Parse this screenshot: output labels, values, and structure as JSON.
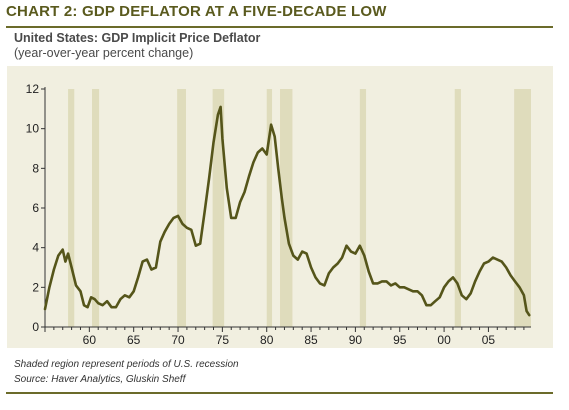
{
  "header": {
    "title": "CHART 2: GDP DEFLATOR AT A FIVE-DECADE LOW",
    "subtitle": "United States: GDP Implicit Price Deflator",
    "unit": "(year-over-year percent change)"
  },
  "footer": {
    "note": "Shaded region represent periods of U.S. recession",
    "source": "Source: Haver Analytics, Gluskin Sheff"
  },
  "colors": {
    "line": "#55551a",
    "recession": "#dfdcbc",
    "background": "#f1efe0",
    "title": "#5a5a1e"
  },
  "chart_data": {
    "type": "line",
    "title": "CHART 2: GDP DEFLATOR AT A FIVE-DECADE LOW",
    "subtitle": "United States: GDP Implicit Price Deflator",
    "ylabel": "(year-over-year percent change)",
    "xlim": [
      1955.0,
      2009.8
    ],
    "ylim": [
      0,
      12
    ],
    "yticks": [
      0,
      2,
      4,
      6,
      8,
      10,
      12
    ],
    "xticks": [
      {
        "label": "60",
        "value": 1960
      },
      {
        "label": "65",
        "value": 1965
      },
      {
        "label": "70",
        "value": 1970
      },
      {
        "label": "75",
        "value": 1975
      },
      {
        "label": "80",
        "value": 1980
      },
      {
        "label": "85",
        "value": 1985
      },
      {
        "label": "90",
        "value": 1990
      },
      {
        "label": "95",
        "value": 1995
      },
      {
        "label": "00",
        "value": 2000
      },
      {
        "label": "05",
        "value": 2005
      }
    ],
    "grid": false,
    "recessions": [
      [
        1957.6,
        1958.3
      ],
      [
        1960.3,
        1961.1
      ],
      [
        1969.9,
        1970.9
      ],
      [
        1973.9,
        1975.2
      ],
      [
        1980.0,
        1980.6
      ],
      [
        1981.5,
        1982.9
      ],
      [
        1990.5,
        1991.2
      ],
      [
        2001.2,
        2001.9
      ],
      [
        2007.9,
        2009.8
      ]
    ],
    "series": [
      {
        "x": [
          1955.0,
          1955.5,
          1956.0,
          1956.5,
          1957.0,
          1957.3,
          1957.6,
          1958.0,
          1958.5,
          1959.0,
          1959.4,
          1959.8,
          1960.2,
          1960.6,
          1961.0,
          1961.5,
          1962.0,
          1962.5,
          1963.0,
          1963.5,
          1964.0,
          1964.5,
          1965.0,
          1965.5,
          1966.0,
          1966.5,
          1967.0,
          1967.5,
          1968.0,
          1968.5,
          1969.0,
          1969.5,
          1970.0,
          1970.5,
          1971.0,
          1971.5,
          1972.0,
          1972.5,
          1973.0,
          1973.5,
          1974.0,
          1974.5,
          1974.8,
          1975.0,
          1975.5,
          1976.0,
          1976.5,
          1977.0,
          1977.5,
          1978.0,
          1978.5,
          1979.0,
          1979.5,
          1980.0,
          1980.5,
          1980.9,
          1981.3,
          1981.7,
          1982.0,
          1982.5,
          1983.0,
          1983.5,
          1984.0,
          1984.5,
          1985.0,
          1985.5,
          1986.0,
          1986.5,
          1987.0,
          1987.5,
          1988.0,
          1988.5,
          1989.0,
          1989.5,
          1990.0,
          1990.5,
          1991.0,
          1991.5,
          1992.0,
          1992.5,
          1993.0,
          1993.5,
          1994.0,
          1994.5,
          1995.0,
          1995.5,
          1996.0,
          1996.5,
          1997.0,
          1997.5,
          1998.0,
          1998.5,
          1999.0,
          1999.5,
          2000.0,
          2000.5,
          2001.0,
          2001.5,
          2002.0,
          2002.5,
          2003.0,
          2003.5,
          2004.0,
          2004.5,
          2005.0,
          2005.5,
          2006.0,
          2006.5,
          2007.0,
          2007.5,
          2008.0,
          2008.5,
          2009.0,
          2009.3,
          2009.6
        ],
        "y": [
          0.9,
          2.0,
          2.9,
          3.6,
          3.9,
          3.3,
          3.7,
          3.0,
          2.1,
          1.8,
          1.1,
          1.0,
          1.5,
          1.4,
          1.2,
          1.1,
          1.3,
          1.0,
          1.0,
          1.4,
          1.6,
          1.5,
          1.8,
          2.5,
          3.3,
          3.4,
          2.9,
          3.0,
          4.3,
          4.8,
          5.2,
          5.5,
          5.6,
          5.2,
          5.0,
          4.9,
          4.1,
          4.2,
          5.8,
          7.5,
          9.3,
          10.7,
          11.1,
          9.5,
          7.0,
          5.5,
          5.5,
          6.3,
          6.8,
          7.6,
          8.3,
          8.8,
          9.0,
          8.7,
          10.2,
          9.6,
          8.0,
          6.5,
          5.5,
          4.2,
          3.6,
          3.4,
          3.8,
          3.7,
          3.0,
          2.5,
          2.2,
          2.1,
          2.7,
          3.0,
          3.2,
          3.5,
          4.1,
          3.8,
          3.7,
          4.1,
          3.6,
          2.8,
          2.2,
          2.2,
          2.3,
          2.3,
          2.1,
          2.2,
          2.0,
          2.0,
          1.9,
          1.8,
          1.8,
          1.6,
          1.1,
          1.1,
          1.3,
          1.5,
          2.0,
          2.3,
          2.5,
          2.2,
          1.6,
          1.4,
          1.7,
          2.3,
          2.8,
          3.2,
          3.3,
          3.5,
          3.4,
          3.3,
          3.0,
          2.6,
          2.3,
          2.0,
          1.6,
          0.8,
          0.6
        ]
      }
    ]
  }
}
